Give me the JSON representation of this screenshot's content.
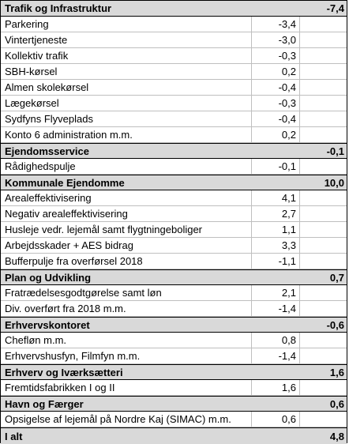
{
  "sections": [
    {
      "title": "Trafik og Infrastruktur",
      "total": "-7,4",
      "items": [
        {
          "label": "Parkering",
          "value": "-3,4"
        },
        {
          "label": "Vintertjeneste",
          "value": "-3,0"
        },
        {
          "label": "Kollektiv trafik",
          "value": "-0,3"
        },
        {
          "label": "SBH-kørsel",
          "value": "0,2"
        },
        {
          "label": "Almen skolekørsel",
          "value": "-0,4"
        },
        {
          "label": "Lægekørsel",
          "value": "-0,3"
        },
        {
          "label": "Sydfyns Flyveplads",
          "value": "-0,4"
        },
        {
          "label": "Konto 6 administration m.m.",
          "value": "0,2"
        }
      ]
    },
    {
      "title": "Ejendomsservice",
      "total": "-0,1",
      "items": [
        {
          "label": "Rådighedspulje",
          "value": "-0,1"
        }
      ]
    },
    {
      "title": "Kommunale Ejendomme",
      "total": "10,0",
      "items": [
        {
          "label": "Arealeffektivisering",
          "value": "4,1"
        },
        {
          "label": "Negativ arealeffektivisering",
          "value": "2,7"
        },
        {
          "label": "Husleje vedr. lejemål samt flygtningeboliger",
          "value": "1,1"
        },
        {
          "label": "Arbejdsskader + AES bidrag",
          "value": "3,3"
        },
        {
          "label": "Bufferpulje fra overførsel 2018",
          "value": "-1,1"
        }
      ]
    },
    {
      "title": "Plan og Udvikling",
      "total": "0,7",
      "items": [
        {
          "label": "Fratrædelsesgodtgørelse samt løn",
          "value": "2,1"
        },
        {
          "label": "Div. overført fra 2018 m.m.",
          "value": "-1,4"
        }
      ]
    },
    {
      "title": "Erhvervskontoret",
      "total": "-0,6",
      "items": [
        {
          "label": "Chefløn m.m.",
          "value": "0,8"
        },
        {
          "label": "Erhvervshusfyn, Filmfyn m.m.",
          "value": "-1,4"
        }
      ]
    },
    {
      "title": "Erhverv og Iværksætteri",
      "total": "1,6",
      "items": [
        {
          "label": "Fremtidsfabrikken I og II",
          "value": "1,6"
        }
      ]
    },
    {
      "title": "Havn og Færger",
      "total": "0,6",
      "items": [
        {
          "label": "Opsigelse af lejemål på Nordre Kaj (SIMAC) m.m.",
          "value": "0,6"
        }
      ]
    }
  ],
  "grand_total": {
    "label": "I alt",
    "value": "4,8"
  },
  "colors": {
    "section_fill": "#d9d9d9",
    "gridline": "#bfbfbf",
    "border": "#000000"
  }
}
